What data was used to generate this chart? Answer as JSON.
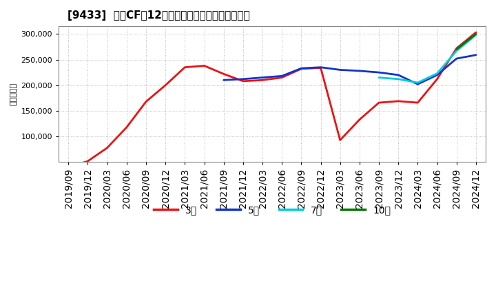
{
  "title": "[9433]  営業CFだ12か月移動合計の標準偏差の推移",
  "ylabel": "（百万円）",
  "ylim": [
    50000,
    315000
  ],
  "yticks": [
    100000,
    150000,
    200000,
    250000,
    300000
  ],
  "background_color": "#ffffff",
  "grid_color": "#999999",
  "series": {
    "3年": {
      "color": "#ee1111",
      "dates": [
        "2019/09",
        "2019/12",
        "2020/03",
        "2020/06",
        "2020/09",
        "2020/12",
        "2021/03",
        "2021/06",
        "2021/09",
        "2021/12",
        "2022/03",
        "2022/06",
        "2022/09",
        "2022/12",
        "2023/03",
        "2023/06",
        "2023/09",
        "2023/12",
        "2024/03",
        "2024/06",
        "2024/09",
        "2024/12"
      ],
      "values": [
        40000,
        52000,
        78000,
        118000,
        168000,
        200000,
        235000,
        238000,
        222000,
        208000,
        210000,
        215000,
        232000,
        234000,
        93000,
        133000,
        166000,
        169000,
        166000,
        212000,
        272000,
        303000
      ]
    },
    "5年": {
      "color": "#1133cc",
      "dates": [
        "2021/09",
        "2021/12",
        "2022/03",
        "2022/06",
        "2022/09",
        "2022/12",
        "2023/03",
        "2023/06",
        "2023/09",
        "2023/12",
        "2024/03",
        "2024/06",
        "2024/09",
        "2024/12"
      ],
      "values": [
        210000,
        212000,
        215000,
        218000,
        233000,
        235000,
        230000,
        228000,
        225000,
        220000,
        202000,
        220000,
        252000,
        259000
      ]
    },
    "7年": {
      "color": "#00ccdd",
      "dates": [
        "2023/09",
        "2023/12",
        "2024/03",
        "2024/06",
        "2024/09",
        "2024/12"
      ],
      "values": [
        215000,
        212000,
        205000,
        223000,
        267000,
        298000
      ]
    },
    "10年": {
      "color": "#007700",
      "dates": [
        "2024/09",
        "2024/12"
      ],
      "values": [
        270000,
        300000
      ]
    }
  },
  "legend_labels": [
    "3年",
    "5年",
    "7年",
    "10年"
  ],
  "legend_colors": [
    "#ee1111",
    "#1133cc",
    "#00ccdd",
    "#007700"
  ],
  "xtick_labels": [
    "2019/09",
    "2019/12",
    "2020/03",
    "2020/06",
    "2020/09",
    "2020/12",
    "2021/03",
    "2021/06",
    "2021/09",
    "2021/12",
    "2022/03",
    "2022/06",
    "2022/09",
    "2022/12",
    "2023/03",
    "2023/06",
    "2023/09",
    "2023/12",
    "2024/03",
    "2024/06",
    "2024/09",
    "2024/12"
  ]
}
